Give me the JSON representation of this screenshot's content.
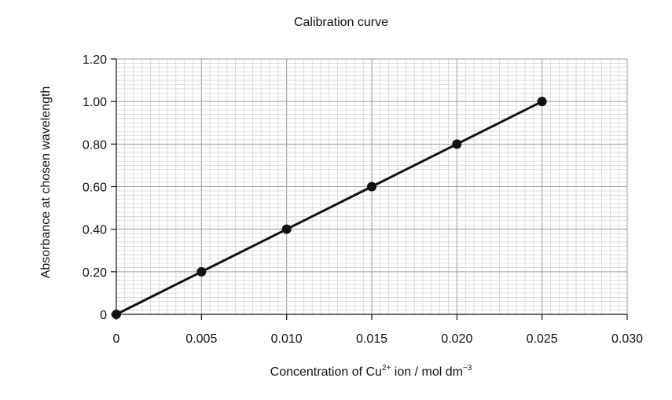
{
  "chart_data": {
    "type": "line",
    "title": "Calibration curve",
    "xlabel": {
      "prefix": "Concentration of Cu",
      "superscript": "2+",
      "middle": " ion / mol dm",
      "unit_superscript": "−3"
    },
    "ylabel": "Absorbance at chosen wavelength",
    "xlim": [
      0,
      0.03
    ],
    "ylim": [
      0,
      1.2
    ],
    "x_tick_labels": [
      "0",
      "0.005",
      "0.010",
      "0.015",
      "0.020",
      "0.025",
      "0.030"
    ],
    "y_tick_labels": [
      "0",
      "0.20",
      "0.40",
      "0.60",
      "0.80",
      "1.00",
      "1.20"
    ],
    "x_ticks": [
      0,
      0.005,
      0.01,
      0.015,
      0.02,
      0.025,
      0.03
    ],
    "y_ticks": [
      0,
      0.2,
      0.4,
      0.6,
      0.8,
      1.0,
      1.2
    ],
    "grid": true,
    "series": [
      {
        "x": [
          0,
          0.005,
          0.01,
          0.015,
          0.02,
          0.025
        ],
        "y": [
          0,
          0.2,
          0.4,
          0.6,
          0.8,
          1.0
        ]
      }
    ],
    "colors": {
      "grid_minor": "#c8c8c8",
      "grid_major": "#9a9a9a",
      "axis": "#111111",
      "line": "#111111",
      "marker": "#111111"
    }
  }
}
